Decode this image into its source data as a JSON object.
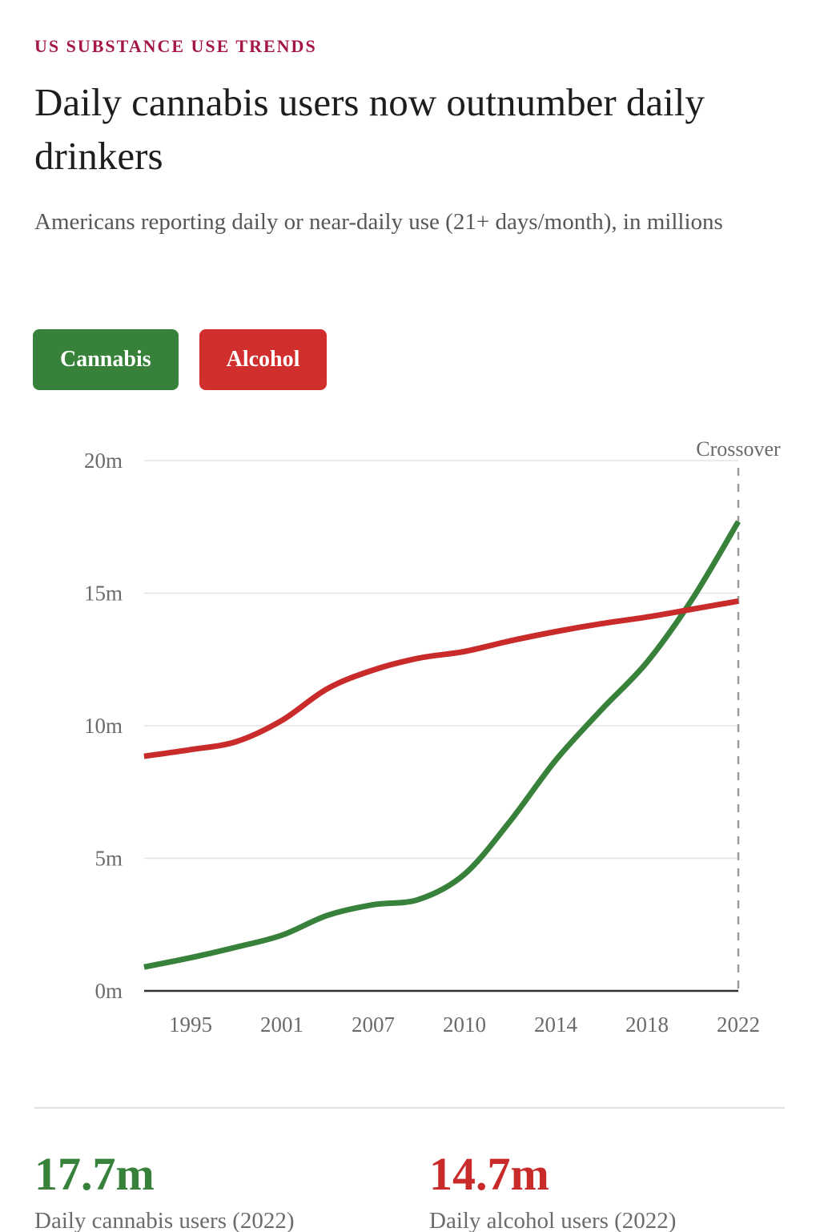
{
  "page": {
    "kicker": "US SUBSTANCE USE TRENDS",
    "title": "Daily cannabis users now outnumber daily drinkers",
    "subtitle": "Americans reporting daily or near-daily use (21+ days/month), in millions"
  },
  "legend": {
    "cannabis_label": "Cannabis",
    "alcohol_label": "Alcohol"
  },
  "colors": {
    "kicker": "#a51744",
    "cannabis": "#37813b",
    "alcohol_line": "#c92b2b",
    "alcohol_button": "#d12e2e",
    "muted_text": "#6b6b6b",
    "grid": "#e4e4e4",
    "axis": "#2f2f2f",
    "dashed_line": "#9b9b9b"
  },
  "chart_data": {
    "type": "line",
    "title": "Daily cannabis users now outnumber daily drinkers",
    "xlabel": "",
    "ylabel": "millions",
    "ylim": [
      0,
      20
    ],
    "grid": true,
    "x_ticks": [
      "1995",
      "2001",
      "2007",
      "2010",
      "2014",
      "2018",
      "2022"
    ],
    "y_ticks": [
      {
        "value": 0,
        "label": "0m"
      },
      {
        "value": 5,
        "label": "5m"
      },
      {
        "value": 10,
        "label": "10m"
      },
      {
        "value": 15,
        "label": "15m"
      },
      {
        "value": 20,
        "label": "20m"
      }
    ],
    "annotation": {
      "label": "Crossover",
      "at_x_tick": "2022"
    },
    "x_unit_note": "points given as [x_tick_index, value_millions]; tick index 0 = 1995, 6 = 2022; negative = before first tick",
    "series": [
      {
        "name": "Cannabis",
        "color": "#37813b",
        "points": [
          [
            -0.51,
            0.9
          ],
          [
            0,
            1.25
          ],
          [
            0.5,
            1.65
          ],
          [
            1,
            2.1
          ],
          [
            1.5,
            2.85
          ],
          [
            2,
            3.25
          ],
          [
            2.5,
            3.45
          ],
          [
            3,
            4.4
          ],
          [
            3.5,
            6.4
          ],
          [
            4,
            8.7
          ],
          [
            4.5,
            10.6
          ],
          [
            5,
            12.4
          ],
          [
            5.5,
            14.8
          ],
          [
            6,
            17.7
          ]
        ]
      },
      {
        "name": "Alcohol",
        "color": "#c92b2b",
        "points": [
          [
            -0.51,
            8.85
          ],
          [
            0,
            9.1
          ],
          [
            0.5,
            9.4
          ],
          [
            1,
            10.2
          ],
          [
            1.5,
            11.4
          ],
          [
            2,
            12.1
          ],
          [
            2.5,
            12.55
          ],
          [
            3,
            12.8
          ],
          [
            3.5,
            13.2
          ],
          [
            4,
            13.55
          ],
          [
            4.5,
            13.85
          ],
          [
            5,
            14.1
          ],
          [
            5.5,
            14.4
          ],
          [
            6,
            14.7
          ]
        ]
      }
    ],
    "endpoint_values": {
      "cannabis_2022_millions": 17.7,
      "alcohol_2022_millions": 14.7
    }
  },
  "stats": [
    {
      "value": "17.7m",
      "label": "Daily cannabis users (2022)"
    },
    {
      "value": "14.7m",
      "label": "Daily alcohol users (2022)"
    }
  ]
}
